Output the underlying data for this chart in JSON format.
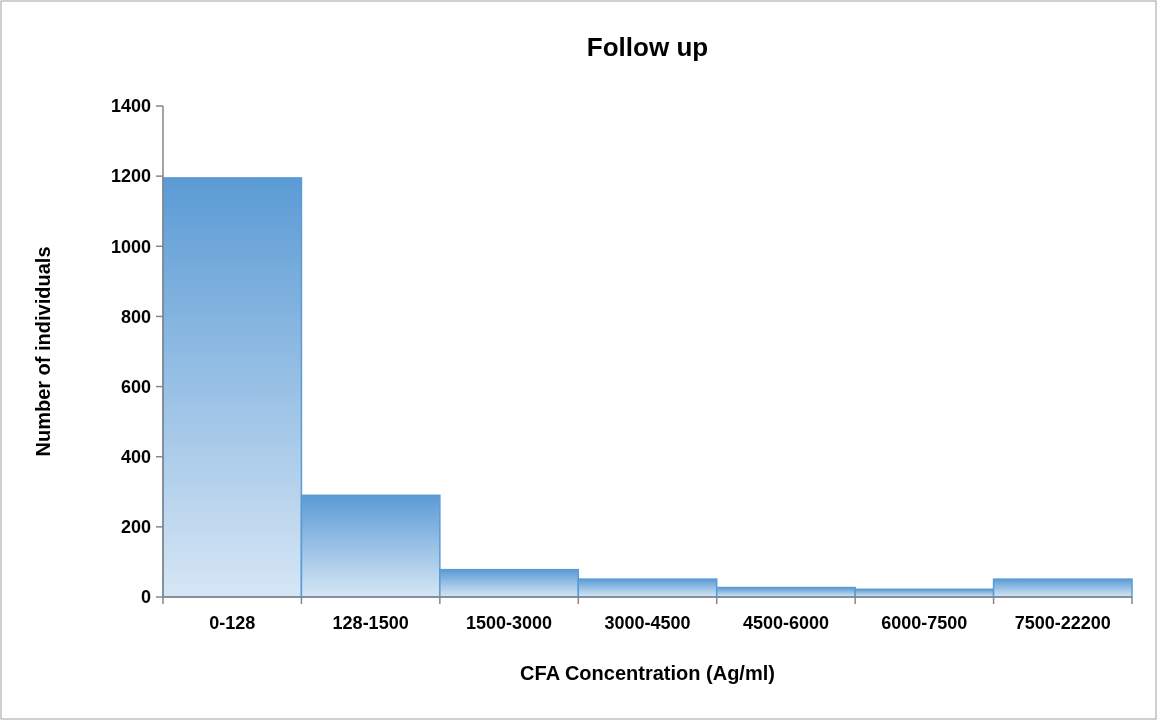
{
  "chart_data": {
    "type": "bar",
    "title": "Follow up",
    "xlabel": "CFA Concentration (Ag/ml)",
    "ylabel": "Number of individuals",
    "categories": [
      "0-128",
      "128-1500",
      "1500-3000",
      "3000-4500",
      "4500-6000",
      "6000-7500",
      "7500-22200"
    ],
    "values": [
      1195,
      290,
      78,
      51,
      27,
      22,
      51
    ],
    "color": "#5b9bd5",
    "ylim": [
      0,
      1400
    ],
    "yticks": [
      0,
      200,
      400,
      600,
      800,
      1000,
      1200,
      1400
    ],
    "grid": false
  }
}
